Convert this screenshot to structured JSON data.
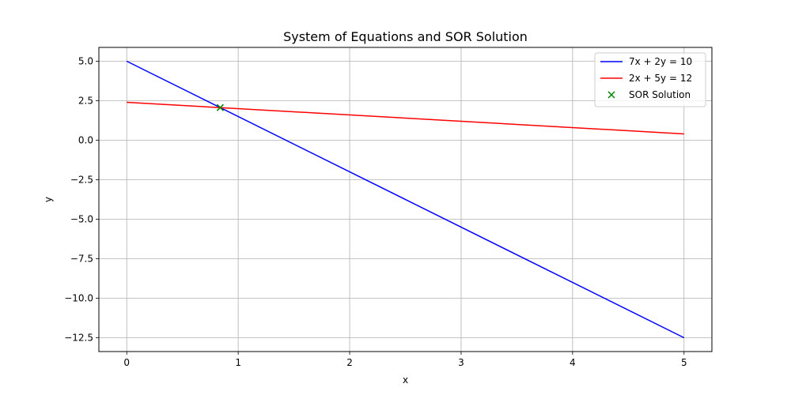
{
  "chart_data": {
    "type": "line",
    "title": "System of Equations and SOR Solution",
    "xlabel": "x",
    "ylabel": "y",
    "xlim": [
      -0.25,
      5.25
    ],
    "ylim": [
      -13.375,
      5.875
    ],
    "xticks": [
      0,
      1,
      2,
      3,
      4,
      5
    ],
    "xtick_labels": [
      "0",
      "1",
      "2",
      "3",
      "4",
      "5"
    ],
    "yticks": [
      5.0,
      2.5,
      0.0,
      -2.5,
      -5.0,
      -7.5,
      -10.0,
      -12.5
    ],
    "ytick_labels": [
      "5.0",
      "2.5",
      "0.0",
      "−2.5",
      "−5.0",
      "−7.5",
      "−10.0",
      "−12.5"
    ],
    "grid": true,
    "legend_position": "top-right",
    "series": [
      {
        "name": "7x + 2y = 10",
        "kind": "line",
        "color": "#0000ff",
        "x": [
          0,
          5
        ],
        "y": [
          5.0,
          -12.5
        ]
      },
      {
        "name": "2x + 5y = 12",
        "kind": "line",
        "color": "#ff0000",
        "x": [
          0,
          5
        ],
        "y": [
          2.4,
          0.4
        ]
      },
      {
        "name": "SOR Solution",
        "kind": "scatter",
        "marker": "x",
        "color": "#008000",
        "x": [
          0.8387
        ],
        "y": [
          2.0645
        ]
      }
    ]
  }
}
